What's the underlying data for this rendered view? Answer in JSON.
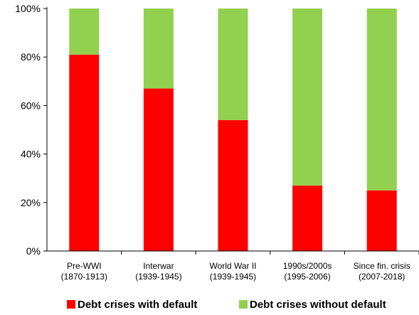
{
  "chart_data": {
    "type": "bar",
    "stacked": true,
    "categories": [
      [
        "Pre-WWI",
        "(1870-1913)"
      ],
      [
        "Interwar",
        "(1939-1945)"
      ],
      [
        "World War II",
        "(1939-1945)"
      ],
      [
        "1990s/2000s",
        "(1995-2006)"
      ],
      [
        "Since fin. crisis",
        "(2007-2018)"
      ]
    ],
    "series": [
      {
        "name": "Debt crises with default",
        "color": "#ff0000",
        "values": [
          81,
          67,
          54,
          27,
          25
        ]
      },
      {
        "name": "Debt crises without default",
        "color": "#92d050",
        "values": [
          19,
          33,
          46,
          73,
          75
        ]
      }
    ],
    "ylim": [
      0,
      100
    ],
    "yticks": [
      0,
      20,
      40,
      60,
      80,
      100
    ],
    "ytick_labels": [
      "0%",
      "20%",
      "40%",
      "60%",
      "80%",
      "100%"
    ],
    "grid": false,
    "legend_position": "bottom"
  }
}
